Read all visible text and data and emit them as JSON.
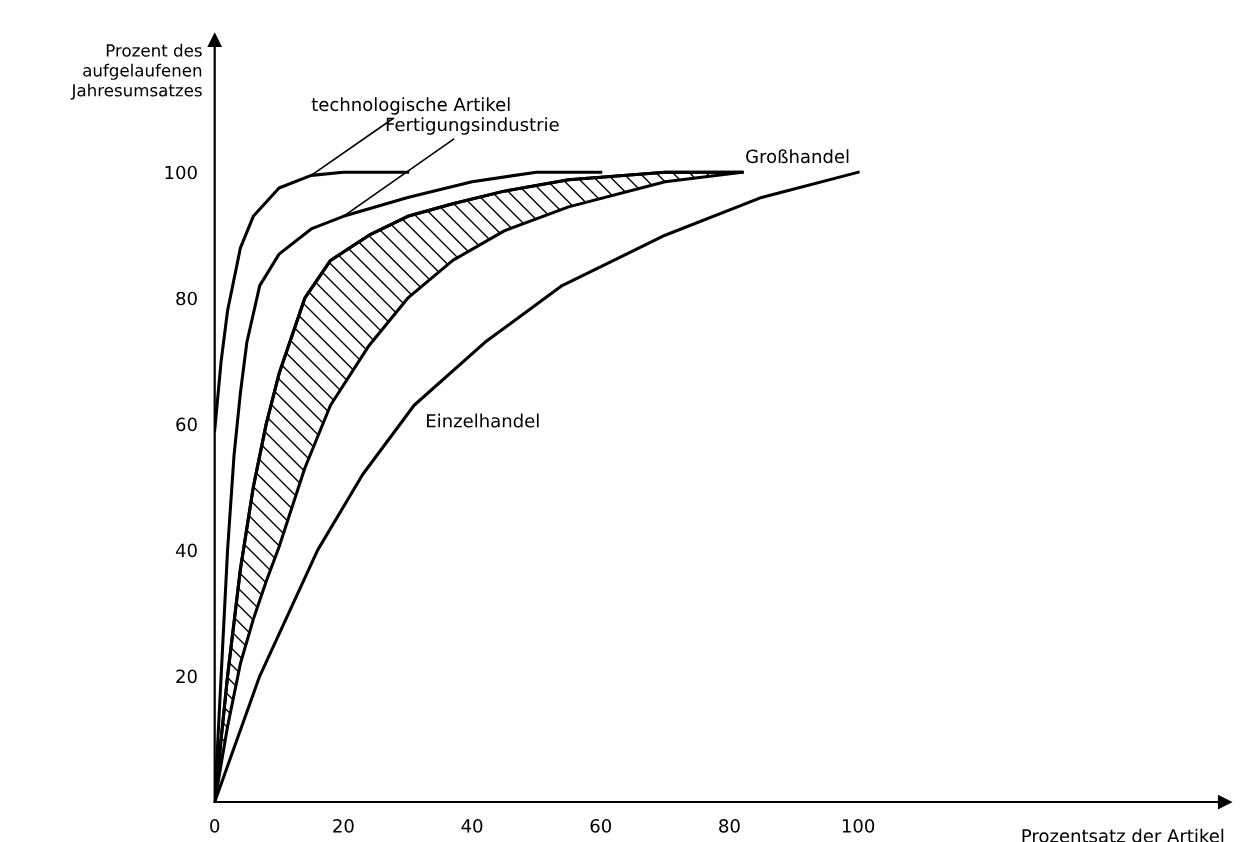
{
  "chart_data": {
    "type": "line",
    "xlabel": "Prozentsatz der Artikel",
    "ylabel": "Prozent des\naufgelaufenen\nJahresumsatzes",
    "xlim": [
      0,
      157
    ],
    "ylim": [
      0,
      121
    ],
    "xticks": [
      0,
      20,
      40,
      60,
      80,
      100
    ],
    "yticks": [
      20,
      40,
      60,
      80,
      100
    ],
    "grid": false,
    "legend": false,
    "marker": "none",
    "line_style": "solid",
    "series": [
      {
        "name": "technologische Artikel",
        "color": "#000000",
        "x": [
          0,
          1,
          2,
          4,
          6,
          10,
          15,
          20,
          30
        ],
        "values": [
          59,
          70,
          78,
          88,
          93,
          97.5,
          99.5,
          100,
          100
        ]
      },
      {
        "name": "Fertigungsindustrie",
        "color": "#000000",
        "x": [
          0,
          1,
          2,
          3,
          4,
          5,
          7,
          10,
          15,
          20,
          30,
          40,
          50,
          60
        ],
        "values": [
          0,
          20,
          40,
          55,
          65,
          73,
          82,
          87,
          91,
          93,
          96,
          98.5,
          100,
          100
        ]
      },
      {
        "name": "Großhandel",
        "color": "#000000",
        "x": [
          0,
          2,
          4,
          6,
          8,
          10,
          14,
          18,
          24,
          30,
          37,
          45,
          55,
          70,
          82
        ],
        "values": [
          0,
          20,
          37,
          50,
          60,
          68,
          80,
          86,
          90,
          93,
          95,
          97,
          98.8,
          100,
          100
        ],
        "lower": [
          0,
          12,
          22,
          29,
          35,
          40.5,
          53,
          63,
          72.5,
          80,
          86,
          90.7,
          94.5,
          98.5,
          100
        ],
        "upper": [
          0,
          20,
          37,
          50,
          60,
          68,
          80,
          86,
          90,
          93,
          95,
          97,
          98.8,
          100,
          100
        ]
      },
      {
        "name": "Einzelhandel",
        "color": "#000000",
        "x": [
          0,
          7,
          16,
          23,
          31,
          42,
          54,
          70,
          85,
          100
        ],
        "values": [
          0,
          20,
          40,
          52,
          63,
          73,
          82,
          90,
          96,
          100
        ]
      }
    ]
  }
}
